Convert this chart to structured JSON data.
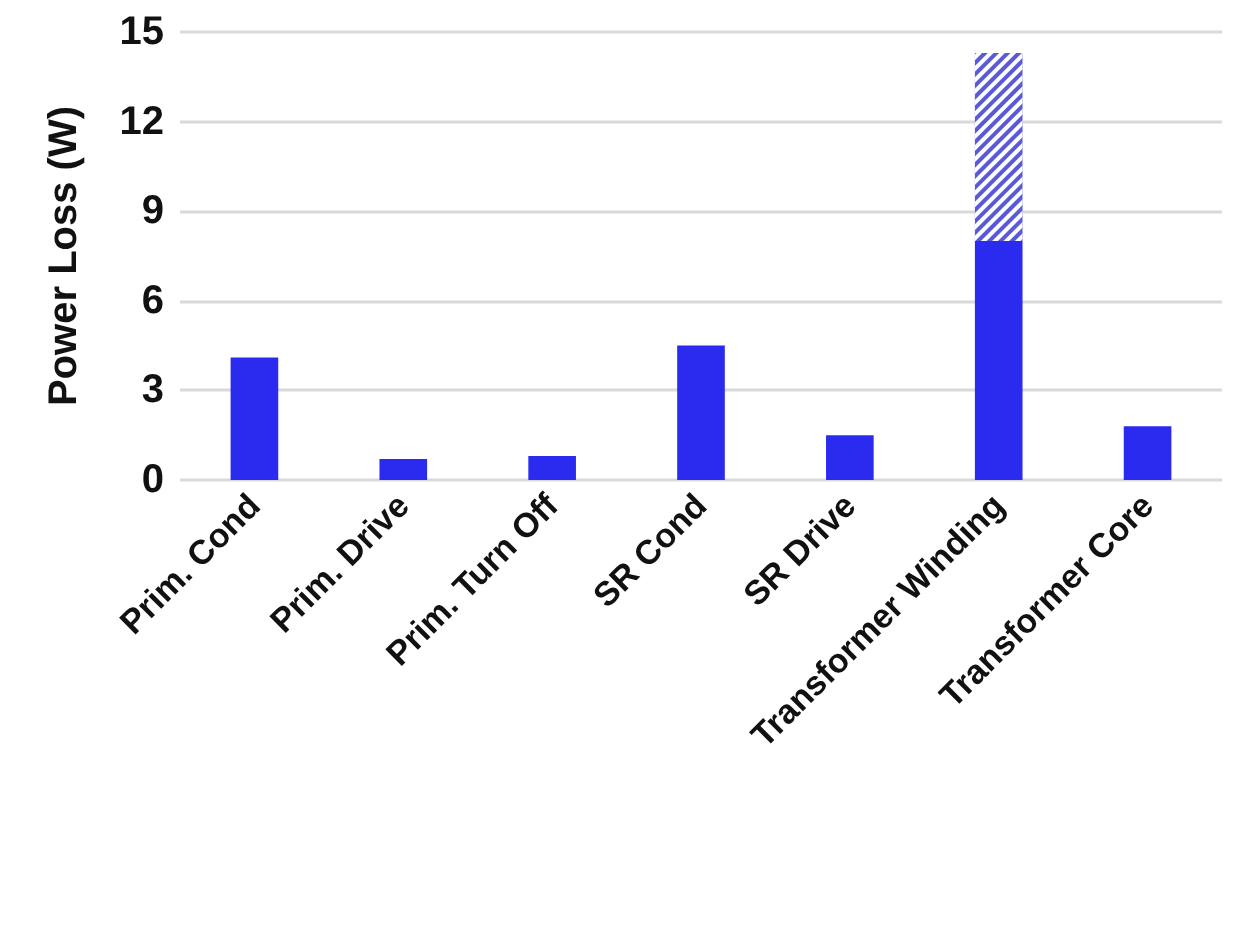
{
  "chart_data": {
    "type": "bar",
    "ylabel": "Power Loss (W)",
    "categories": [
      "Prim. Cond",
      "Prim. Drive",
      "Prim. Turn Off",
      "SR Cond",
      "SR Drive",
      "Transformer Winding",
      "Transformer Core"
    ],
    "series": [
      {
        "color": "#2b2bf0",
        "values": [
          4.1,
          0.7,
          0.8,
          4.5,
          1.5,
          8.0,
          1.8
        ]
      },
      {
        "color": "#5a5ad8",
        "values": [
          null,
          null,
          null,
          null,
          null,
          6.3,
          null
        ]
      }
    ],
    "stacked": true,
    "ylim": [
      0,
      15
    ],
    "yticks": [
      0,
      3,
      6,
      9,
      12,
      15
    ],
    "grid": "y"
  }
}
